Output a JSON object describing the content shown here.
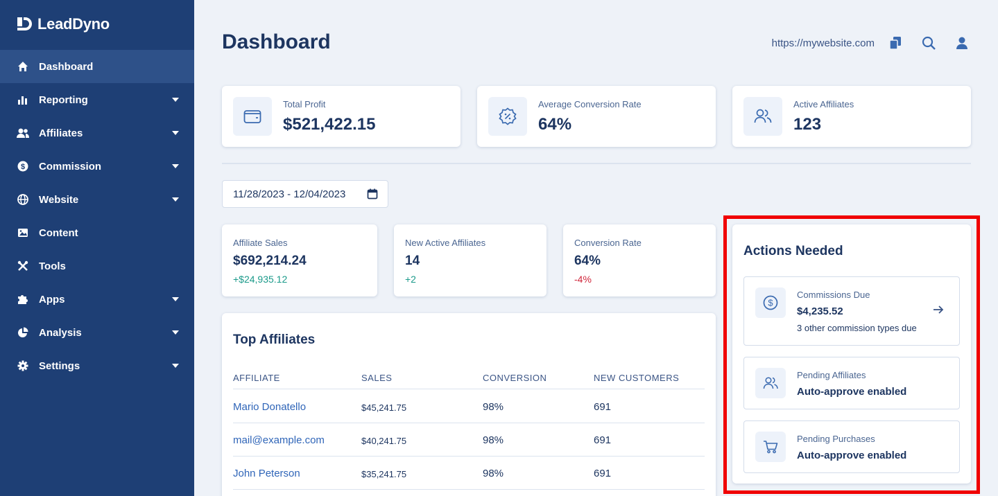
{
  "app": {
    "logo_text": "LeadDyno"
  },
  "sidebar": {
    "items": [
      {
        "label": "Dashboard",
        "icon": "home-icon"
      },
      {
        "label": "Reporting",
        "icon": "bar-chart-icon"
      },
      {
        "label": "Affiliates",
        "icon": "users-icon"
      },
      {
        "label": "Commission",
        "icon": "dollar-circle-icon"
      },
      {
        "label": "Website",
        "icon": "globe-icon"
      },
      {
        "label": "Content",
        "icon": "image-icon"
      },
      {
        "label": "Tools",
        "icon": "tools-icon"
      },
      {
        "label": "Apps",
        "icon": "puzzle-icon"
      },
      {
        "label": "Analysis",
        "icon": "pie-chart-icon"
      },
      {
        "label": "Settings",
        "icon": "gear-icon"
      }
    ]
  },
  "header": {
    "title": "Dashboard",
    "site_url": "https://mywebsite.com"
  },
  "top_stats": [
    {
      "label": "Total Profit",
      "value": "$521,422.15",
      "icon": "wallet-icon"
    },
    {
      "label": "Average Conversion Rate",
      "value": "64%",
      "icon": "percent-badge-icon"
    },
    {
      "label": "Active Affiliates",
      "value": "123",
      "icon": "users-icon"
    }
  ],
  "date_range": "11/28/2023 - 12/04/2023",
  "mini_stats": [
    {
      "label": "Affiliate Sales",
      "value": "$692,214.24",
      "delta": "+$24,935.12"
    },
    {
      "label": "New Active Affiliates",
      "value": "14",
      "delta": "+2"
    },
    {
      "label": "Conversion Rate",
      "value": "64%",
      "delta": "-4%"
    }
  ],
  "top_affiliates": {
    "title": "Top Affiliates",
    "columns": [
      "AFFILIATE",
      "SALES",
      "CONVERSION",
      "NEW CUSTOMERS"
    ],
    "rows": [
      [
        "Mario Donatello",
        "$45,241.75",
        "98%",
        "691"
      ],
      [
        "mail@example.com",
        "$40,241.75",
        "98%",
        "691"
      ],
      [
        "John Peterson",
        "$35,241.75",
        "98%",
        "691"
      ]
    ]
  },
  "actions": {
    "title": "Actions Needed",
    "items": [
      {
        "label": "Commissions Due",
        "value": "$4,235.52",
        "sub": "3 other commission types due",
        "icon": "dollar-circle-icon"
      },
      {
        "label": "Pending Affiliates",
        "value": "Auto-approve enabled",
        "icon": "users-icon"
      },
      {
        "label": "Pending Purchases",
        "value": "Auto-approve enabled",
        "icon": "cart-icon"
      }
    ]
  },
  "colors": {
    "sidebar_bg": "#1e3f75",
    "primary_text": "#1d3560",
    "positive": "#1b9a8a",
    "negative": "#d0253a",
    "highlight": "#f00000"
  }
}
